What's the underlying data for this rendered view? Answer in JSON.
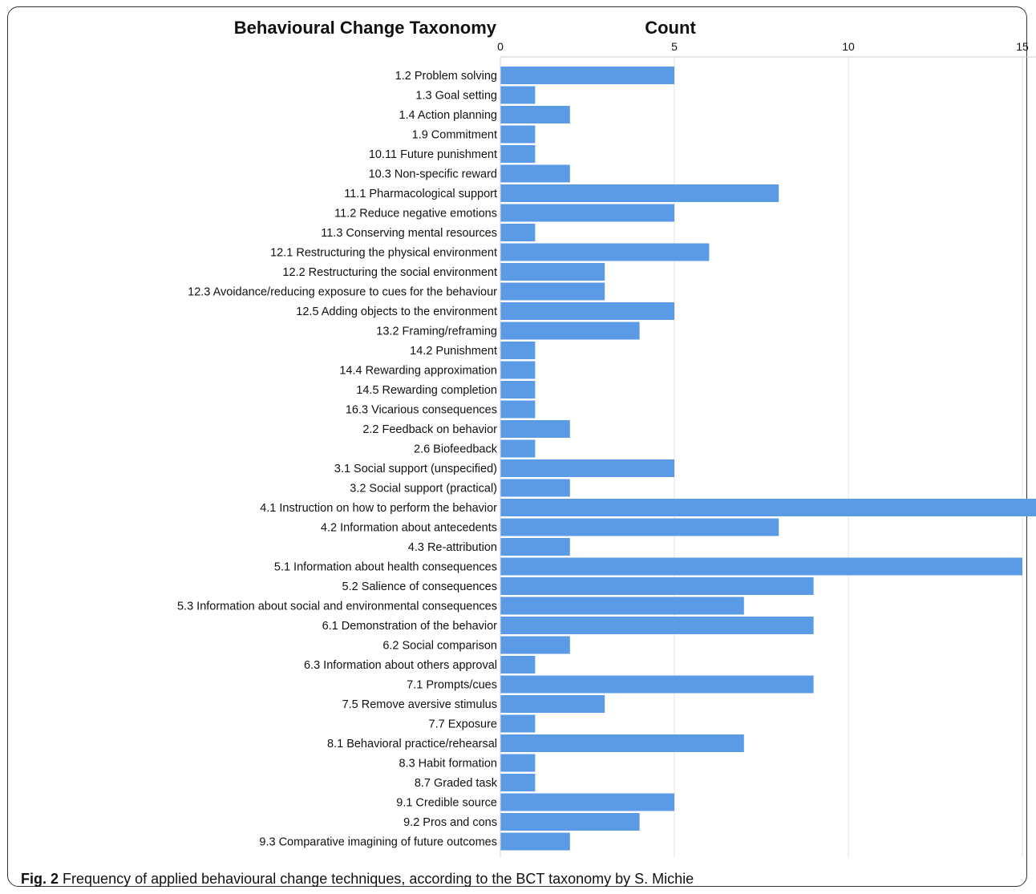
{
  "chart_data": {
    "type": "bar",
    "orientation": "horizontal",
    "category_header": "Behavioural Change Taxonomy",
    "value_header": "Count",
    "xlim": [
      0,
      22
    ],
    "xticks": [
      0,
      5,
      10,
      15,
      20
    ],
    "grid": true,
    "bar_color": "#5b9be6",
    "categories": [
      "1.2 Problem solving",
      "1.3 Goal setting",
      "1.4 Action planning",
      "1.9 Commitment",
      "10.11 Future punishment",
      "10.3 Non-specific reward",
      "11.1 Pharmacological support",
      "11.2 Reduce negative emotions",
      "11.3 Conserving mental resources",
      "12.1 Restructuring the physical environment",
      "12.2 Restructuring the social environment",
      "12.3 Avoidance/reducing exposure to cues for the behaviour",
      "12.5 Adding objects to the environment",
      "13.2 Framing/reframing",
      "14.2 Punishment",
      "14.4 Rewarding approximation",
      "14.5 Rewarding completion",
      "16.3 Vicarious consequences",
      "2.2 Feedback on behavior",
      "2.6 Biofeedback",
      "3.1 Social support (unspecified)",
      "3.2 Social support (practical)",
      "4.1 Instruction on how to perform the behavior",
      "4.2 Information about antecedents",
      "4.3 Re-attribution",
      "5.1 Information about health consequences",
      "5.2 Salience of consequences",
      "5.3 Information about social and environmental consequences",
      "6.1 Demonstration of the behavior",
      "6.2 Social comparison",
      "6.3 Information about others approval",
      "7.1 Prompts/cues",
      "7.5 Remove aversive stimulus",
      "7.7 Exposure",
      "8.1 Behavioral practice/rehearsal",
      "8.3 Habit formation",
      "8.7 Graded task",
      "9.1 Credible source",
      "9.2 Pros and cons",
      "9.3 Comparative imagining of future outcomes"
    ],
    "values": [
      5,
      1,
      2,
      1,
      1,
      2,
      8,
      5,
      1,
      6,
      3,
      3,
      5,
      4,
      1,
      1,
      1,
      1,
      2,
      1,
      5,
      2,
      16,
      8,
      2,
      15,
      9,
      7,
      9,
      2,
      1,
      9,
      3,
      1,
      7,
      1,
      1,
      5,
      4,
      2
    ]
  },
  "caption": {
    "label": "Fig. 2",
    "text": "Frequency of applied behavioural change techniques, according to the BCT taxonomy by S. Michie"
  }
}
